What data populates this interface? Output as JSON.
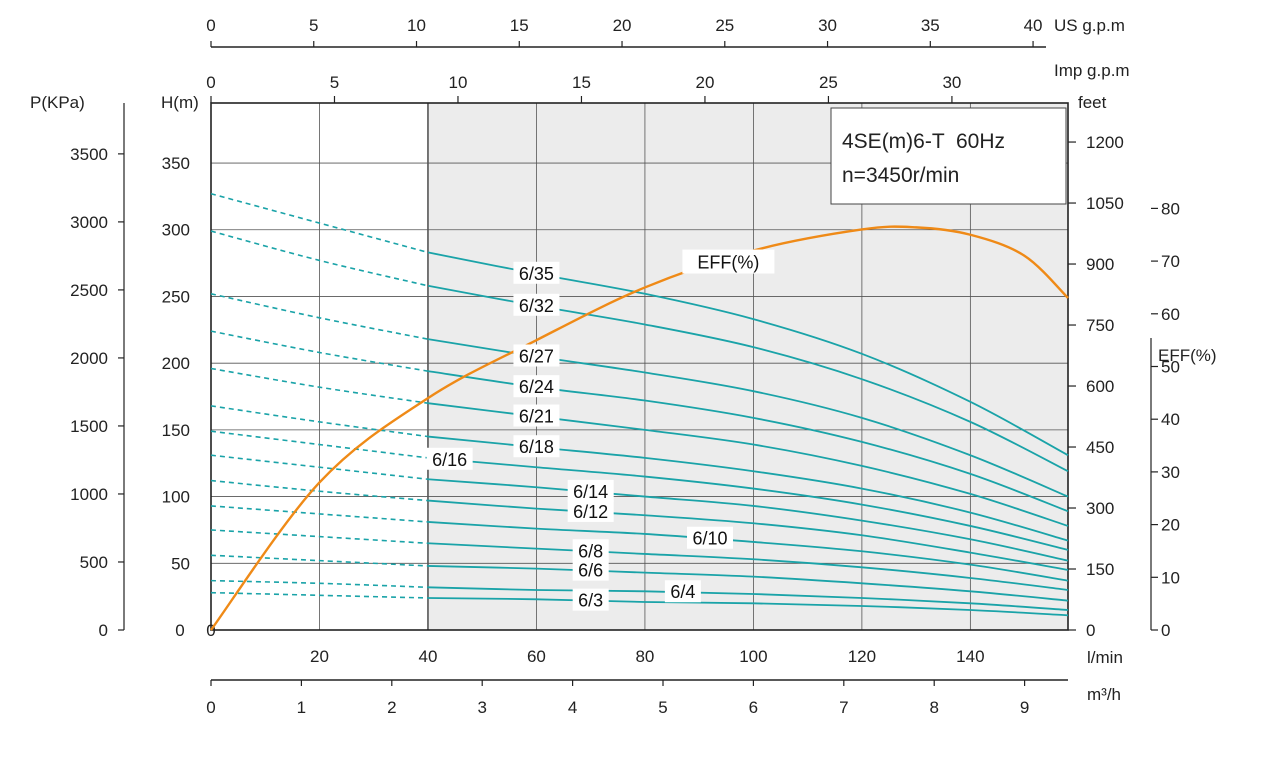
{
  "chart_data": {
    "type": "line",
    "title": "4SE(m)6-T  60Hz",
    "subtitle": "n=3450r/min",
    "colors": {
      "head_curve": "#1aa3a8",
      "eff_curve": "#ef8a17",
      "shade": "#ececec",
      "grid": "#555555"
    },
    "axes": {
      "flow_lmin": {
        "label": "l/min",
        "range": [
          0,
          158
        ],
        "ticks": [
          "20",
          "40",
          "60",
          "80",
          "100",
          "120",
          "140"
        ]
      },
      "flow_m3h": {
        "label": "m³/h",
        "range": [
          0,
          9.48
        ],
        "ticks": [
          "0",
          "1",
          "2",
          "3",
          "4",
          "5",
          "6",
          "7",
          "8",
          "9"
        ]
      },
      "flow_usgpm": {
        "label": "US g.p.m",
        "range": [
          0,
          41.7
        ],
        "ticks": [
          "0",
          "5",
          "10",
          "15",
          "20",
          "25",
          "30",
          "35",
          "40"
        ]
      },
      "flow_impgpm": {
        "label": "Imp g.p.m",
        "range": [
          0,
          34.7
        ],
        "ticks": [
          "0",
          "5",
          "10",
          "15",
          "20",
          "25",
          "30"
        ]
      },
      "head_m": {
        "label": "H(m)",
        "range": [
          0,
          395
        ],
        "ticks": [
          "0",
          "50",
          "100",
          "150",
          "200",
          "250",
          "300",
          "350"
        ]
      },
      "pressure_kpa": {
        "label": "P(KPa)",
        "range": [
          0,
          3874
        ],
        "ticks": [
          "0",
          "500",
          "1000",
          "1500",
          "2000",
          "2500",
          "3000",
          "3500"
        ]
      },
      "head_feet": {
        "label": "feet",
        "range": [
          0,
          1296
        ],
        "ticks": [
          "0",
          "150",
          "300",
          "450",
          "600",
          "750",
          "900",
          "1050",
          "1200"
        ]
      },
      "efficiency": {
        "label": "EFF(%)",
        "range": [
          0,
          100
        ],
        "ticks": [
          "0",
          "10",
          "20",
          "30",
          "40",
          "50",
          "60",
          "70",
          "80"
        ]
      }
    },
    "recommended_range_lmin": [
      40,
      158
    ],
    "x_lmin": [
      0,
      20,
      40,
      60,
      80,
      100,
      120,
      140,
      158
    ],
    "series": [
      {
        "name": "6/35",
        "label_at": 60,
        "head_m": [
          327,
          305,
          283,
          267,
          252,
          233,
          207,
          171,
          131
        ]
      },
      {
        "name": "6/32",
        "label_at": 60,
        "head_m": [
          299,
          277,
          258,
          243,
          229,
          212,
          188,
          156,
          119
        ]
      },
      {
        "name": "6/27",
        "label_at": 60,
        "head_m": [
          252,
          234,
          218,
          205,
          193,
          179,
          159,
          131,
          100
        ]
      },
      {
        "name": "6/24",
        "label_at": 60,
        "head_m": [
          224,
          208,
          194,
          182,
          172,
          159,
          141,
          117,
          89
        ]
      },
      {
        "name": "6/21",
        "label_at": 60,
        "head_m": [
          196,
          182,
          170,
          160,
          150,
          139,
          123,
          102,
          78
        ]
      },
      {
        "name": "6/18",
        "label_at": 60,
        "head_m": [
          168,
          156,
          145,
          137,
          129,
          119,
          106,
          88,
          67
        ]
      },
      {
        "name": "6/16",
        "label_at": 44,
        "head_m": [
          149,
          139,
          129,
          122,
          115,
          106,
          94,
          78,
          60
        ]
      },
      {
        "name": "6/14",
        "label_at": 70,
        "head_m": [
          131,
          122,
          113,
          107,
          100,
          93,
          82,
          68,
          52
        ]
      },
      {
        "name": "6/12",
        "label_at": 70,
        "head_m": [
          112,
          104,
          97,
          91,
          86,
          80,
          71,
          58,
          45
        ]
      },
      {
        "name": "6/10",
        "label_at": 92,
        "head_m": [
          93,
          87,
          81,
          76,
          72,
          66,
          59,
          49,
          37
        ]
      },
      {
        "name": "6/8",
        "label_at": 70,
        "head_m": [
          75,
          70,
          65,
          61,
          57,
          53,
          47,
          39,
          30
        ]
      },
      {
        "name": "6/6",
        "label_at": 70,
        "head_m": [
          56,
          52,
          48,
          46,
          43,
          40,
          35,
          29,
          22
        ]
      },
      {
        "name": "6/4",
        "label_at": 87,
        "head_m": [
          37,
          35,
          32,
          30,
          29,
          27,
          24,
          20,
          15
        ]
      },
      {
        "name": "6/3",
        "label_at": 70,
        "head_m": [
          28,
          26,
          24,
          23,
          21,
          20,
          18,
          15,
          11
        ]
      }
    ],
    "efficiency_curve": {
      "name": "EFF(%)",
      "label_at": 100,
      "x_lmin": [
        0,
        20,
        40,
        60,
        80,
        100,
        120,
        130,
        140,
        150,
        158
      ],
      "eff": [
        0,
        28,
        44,
        55,
        65,
        72,
        76,
        76.4,
        75,
        71,
        63
      ]
    }
  }
}
